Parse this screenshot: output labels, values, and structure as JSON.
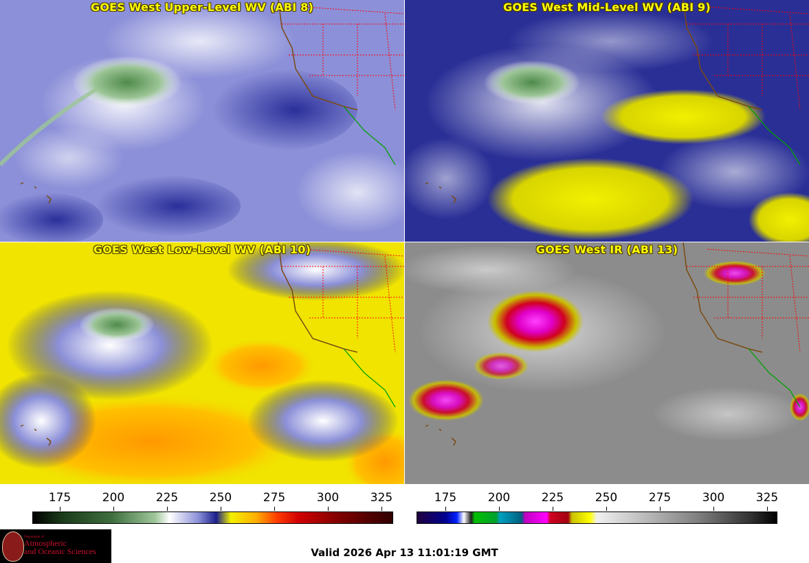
{
  "panels": [
    {
      "title": "GOES West Upper-Level WV (ABI 8)"
    },
    {
      "title": "GOES West Mid-Level WV (ABI 9)"
    },
    {
      "title": "GOES West Low-Level WV (ABI 10)"
    },
    {
      "title": "GOES West IR (ABI 13)"
    }
  ],
  "colorbars": [
    {
      "ticks": [
        "175",
        "200",
        "225",
        "250",
        "275",
        "300",
        "325"
      ]
    },
    {
      "ticks": [
        "175",
        "200",
        "225",
        "250",
        "275",
        "300",
        "325"
      ]
    }
  ],
  "logo": {
    "dept": "Department of",
    "line1": "Atmospheric",
    "line2": "and Oceanic Sciences"
  },
  "valid_time": "Valid 2026 Apr 13 11:01:19 GMT",
  "colors": {
    "wv_dark": "#1a1f8c",
    "wv_light": "#e8ecff",
    "dry_yellow": "#f2f000",
    "dry_orange": "#ff9900",
    "cold_green": "#5c8a5a",
    "ir_gray": "#8c8c8c",
    "ir_magenta": "#e000c8",
    "ir_red": "#d00020",
    "state_lines": "#ff0000",
    "coast_brown": "#7a4a10",
    "mexico_coast": "#00a000"
  }
}
